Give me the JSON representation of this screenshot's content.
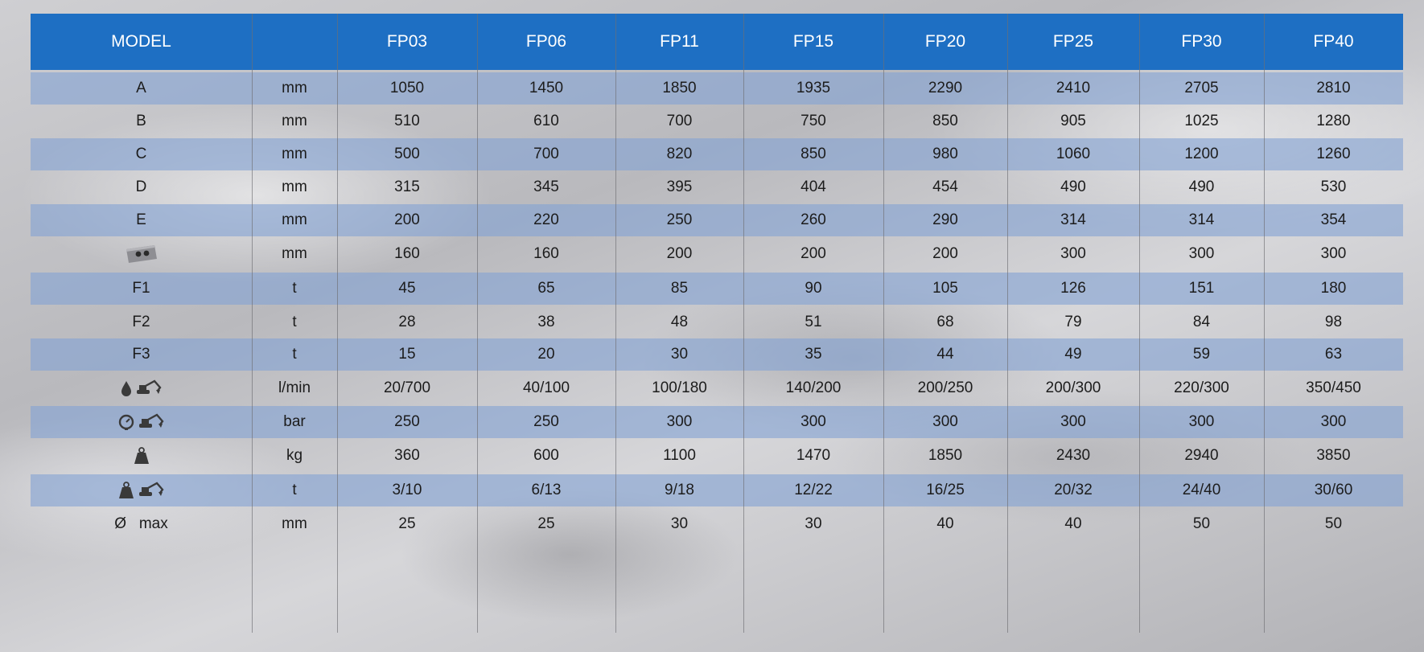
{
  "header": {
    "model_label": "MODEL",
    "unit_label": "",
    "models": [
      "FP03",
      "FP06",
      "FP11",
      "FP15",
      "FP20",
      "FP25",
      "FP30",
      "FP40"
    ]
  },
  "rows": [
    {
      "label": "A",
      "icon": null,
      "unit": "mm",
      "values": [
        "1050",
        "1450",
        "1850",
        "1935",
        "2290",
        "2410",
        "2705",
        "2810"
      ]
    },
    {
      "label": "B",
      "icon": null,
      "unit": "mm",
      "values": [
        "510",
        "610",
        "700",
        "750",
        "850",
        "905",
        "1025",
        "1280"
      ]
    },
    {
      "label": "C",
      "icon": null,
      "unit": "mm",
      "values": [
        "500",
        "700",
        "820",
        "850",
        "980",
        "1060",
        "1200",
        "1260"
      ]
    },
    {
      "label": "D",
      "icon": null,
      "unit": "mm",
      "values": [
        "315",
        "345",
        "395",
        "404",
        "454",
        "490",
        "490",
        "530"
      ]
    },
    {
      "label": "E",
      "icon": null,
      "unit": "mm",
      "values": [
        "200",
        "220",
        "250",
        "260",
        "290",
        "314",
        "314",
        "354"
      ]
    },
    {
      "label": "",
      "icon": "jaw-opening-icon",
      "unit": "mm",
      "values": [
        "160",
        "160",
        "200",
        "200",
        "200",
        "300",
        "300",
        "300"
      ]
    },
    {
      "label": "F1",
      "icon": null,
      "unit": "t",
      "values": [
        "45",
        "65",
        "85",
        "90",
        "105",
        "126",
        "151",
        "180"
      ]
    },
    {
      "label": "F2",
      "icon": null,
      "unit": "t",
      "values": [
        "28",
        "38",
        "48",
        "51",
        "68",
        "79",
        "84",
        "98"
      ]
    },
    {
      "label": "F3",
      "icon": null,
      "unit": "t",
      "values": [
        "15",
        "20",
        "30",
        "35",
        "44",
        "49",
        "59",
        "63"
      ]
    },
    {
      "label": "",
      "icon": "oil-flow-excavator-icon",
      "unit": "l/min",
      "values": [
        "20/700",
        "40/100",
        "100/180",
        "140/200",
        "200/250",
        "200/300",
        "220/300",
        "350/450"
      ]
    },
    {
      "label": "",
      "icon": "pressure-gauge-excavator-icon",
      "unit": "bar",
      "values": [
        "250",
        "250",
        "300",
        "300",
        "300",
        "300",
        "300",
        "300"
      ]
    },
    {
      "label": "",
      "icon": "weight-icon",
      "unit": "kg",
      "values": [
        "360",
        "600",
        "1100",
        "1470",
        "1850",
        "2430",
        "2940",
        "3850"
      ]
    },
    {
      "label": "",
      "icon": "weight-excavator-icon",
      "unit": "t",
      "values": [
        "3/10",
        "6/13",
        "9/18",
        "12/22",
        "16/25",
        "20/32",
        "24/40",
        "30/60"
      ]
    },
    {
      "label": "Ø   max",
      "icon": null,
      "unit": "mm",
      "values": [
        "25",
        "25",
        "30",
        "30",
        "40",
        "40",
        "50",
        "50"
      ]
    }
  ],
  "colors": {
    "header_bg": "#1e6fc3",
    "band_bg": "#85a3d4",
    "icon_color": "#3a3a3a"
  }
}
